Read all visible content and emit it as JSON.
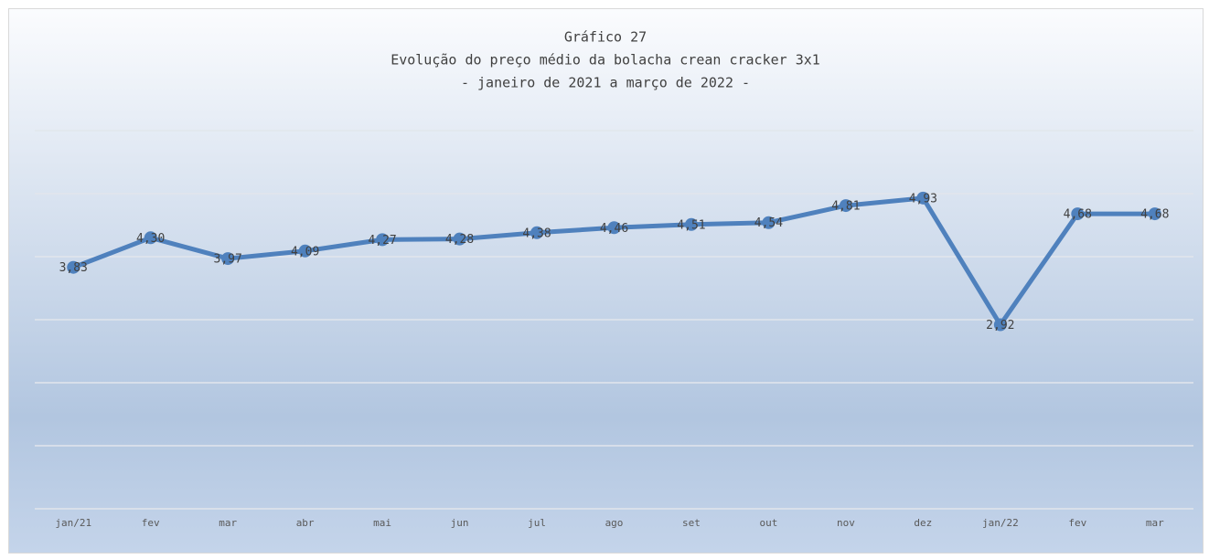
{
  "chart_data": {
    "type": "line",
    "title": "Gráfico 27",
    "subtitle": [
      "Evolução do preço médio da bolacha crean cracker 3x1",
      "- janeiro de 2021 a março de 2022 -"
    ],
    "categories": [
      "jan/21",
      "fev",
      "mar",
      "abr",
      "mai",
      "jun",
      "jul",
      "ago",
      "set",
      "out",
      "nov",
      "dez",
      "jan/22",
      "fev",
      "mar"
    ],
    "series": [
      {
        "name": "Preço médio",
        "color": "#4f81bd",
        "values": [
          3.83,
          4.3,
          3.97,
          4.09,
          4.27,
          4.28,
          4.38,
          4.46,
          4.51,
          4.54,
          4.81,
          4.93,
          2.92,
          4.68,
          4.68
        ],
        "value_labels": [
          "3,83",
          "4,30",
          "3,97",
          "4,09",
          "4,27",
          "4,28",
          "4,38",
          "4,46",
          "4,51",
          "4,54",
          "4,81",
          "4,93",
          "2,92",
          "4,68",
          "4,68"
        ]
      }
    ],
    "ylim": [
      0,
      6
    ],
    "yticks": [
      0,
      1,
      2,
      3,
      4,
      5,
      6
    ],
    "grid": true
  }
}
